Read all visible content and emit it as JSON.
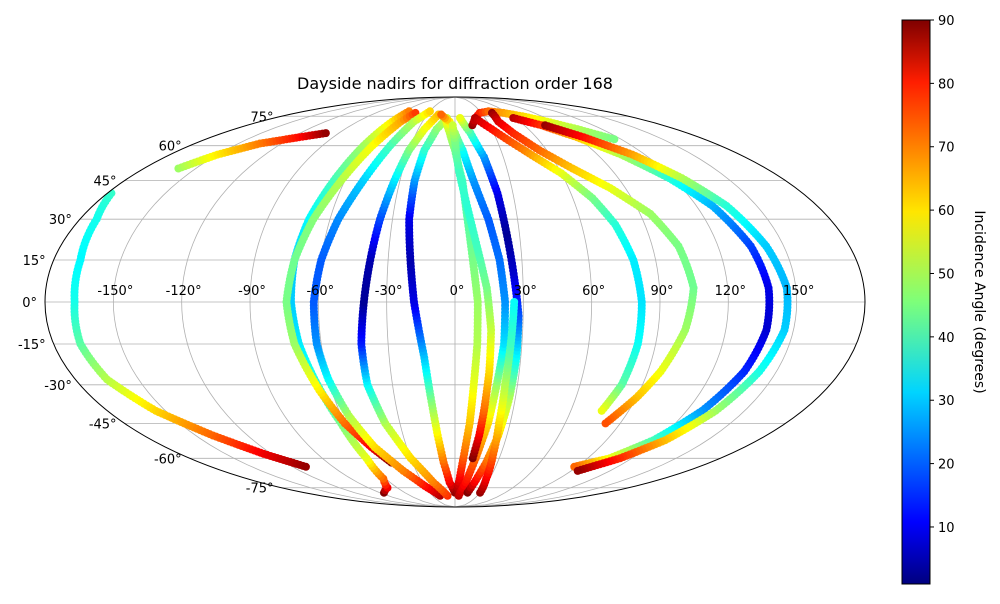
{
  "chart_data": {
    "type": "scatter",
    "projection": "mollweide",
    "title": "Dayside nadirs for diffraction order 168",
    "xlabel": "",
    "ylabel": "",
    "lon_ticks": [
      "-150°",
      "-120°",
      "-90°",
      "-60°",
      "-30°",
      "0°",
      "30°",
      "60°",
      "90°",
      "120°",
      "150°"
    ],
    "lat_ticks": [
      "75°",
      "60°",
      "45°",
      "30°",
      "15°",
      "0°",
      "-15°",
      "-30°",
      "-45°",
      "-60°",
      "-75°"
    ],
    "grid": true,
    "colormap": "jet",
    "colorbar": {
      "label": "Incidence Angle (degrees)",
      "range": [
        1,
        90
      ],
      "ticks": [
        "10",
        "20",
        "30",
        "40",
        "50",
        "60",
        "70",
        "80",
        "90"
      ],
      "placement": "right"
    },
    "series": [
      {
        "points": [
          [
            -178,
            40,
            39
          ],
          [
            -172,
            30,
            36
          ],
          [
            -168,
            15,
            34
          ],
          [
            -167,
            0,
            36
          ],
          [
            -168,
            -15,
            42
          ],
          [
            -165,
            -28,
            50
          ],
          [
            -155,
            -40,
            60
          ],
          [
            -140,
            -50,
            70
          ],
          [
            -125,
            -58,
            80
          ],
          [
            -110,
            -64,
            88
          ]
        ]
      },
      {
        "points": [
          [
            -160,
            50,
            48
          ],
          [
            -150,
            56,
            58
          ],
          [
            -135,
            61,
            68
          ],
          [
            -115,
            64,
            78
          ],
          [
            -100,
            66,
            88
          ]
        ]
      },
      {
        "points": [
          [
            -85,
            -78,
            90
          ],
          [
            -70,
            -75,
            80
          ],
          [
            -62,
            -70,
            70
          ],
          [
            -60,
            -60,
            55
          ],
          [
            -62,
            -45,
            45
          ],
          [
            -66,
            -30,
            38
          ],
          [
            -70,
            -15,
            33
          ],
          [
            -72,
            0,
            30
          ],
          [
            -72,
            15,
            30
          ],
          [
            -70,
            30,
            34
          ],
          [
            -66,
            45,
            40
          ],
          [
            -62,
            60,
            48
          ],
          [
            -58,
            72,
            58
          ],
          [
            -55,
            78,
            68
          ]
        ]
      },
      {
        "points": [
          [
            -45,
            -62,
            90
          ],
          [
            -52,
            -55,
            80
          ],
          [
            -60,
            -45,
            70
          ],
          [
            -66,
            -32,
            58
          ],
          [
            -72,
            -15,
            48
          ],
          [
            -74,
            0,
            45
          ],
          [
            -72,
            15,
            44
          ],
          [
            -68,
            30,
            46
          ],
          [
            -62,
            45,
            50
          ],
          [
            -56,
            60,
            56
          ],
          [
            -50,
            72,
            64
          ],
          [
            -45,
            77,
            74
          ]
        ]
      },
      {
        "points": [
          [
            -20,
            -80,
            86
          ],
          [
            -30,
            -74,
            78
          ],
          [
            -40,
            -66,
            68
          ],
          [
            -50,
            -55,
            60
          ],
          [
            -56,
            -42,
            50
          ],
          [
            -60,
            -28,
            35
          ],
          [
            -62,
            -15,
            25
          ],
          [
            -62,
            0,
            20
          ],
          [
            -60,
            15,
            20
          ],
          [
            -56,
            30,
            24
          ],
          [
            -50,
            45,
            30
          ],
          [
            -44,
            60,
            40
          ],
          [
            -38,
            72,
            50
          ],
          [
            -30,
            78,
            60
          ]
        ]
      },
      {
        "points": [
          [
            -10,
            -80,
            75
          ],
          [
            -20,
            -72,
            68
          ],
          [
            -30,
            -60,
            60
          ],
          [
            -38,
            -45,
            50
          ],
          [
            -42,
            -30,
            35
          ],
          [
            -42,
            -15,
            15
          ],
          [
            -40,
            0,
            3
          ],
          [
            -38,
            15,
            5
          ],
          [
            -36,
            30,
            18
          ],
          [
            -33,
            45,
            32
          ],
          [
            -30,
            58,
            45
          ],
          [
            -25,
            68,
            55
          ],
          [
            -18,
            76,
            62
          ]
        ]
      },
      {
        "points": [
          [
            0,
            -78,
            90
          ],
          [
            -5,
            -72,
            80
          ],
          [
            -8,
            -62,
            70
          ],
          [
            -10,
            -50,
            58
          ],
          [
            -12,
            -35,
            45
          ],
          [
            -14,
            -20,
            30
          ],
          [
            -18,
            0,
            10
          ],
          [
            -20,
            15,
            5
          ],
          [
            -22,
            30,
            10
          ],
          [
            -22,
            45,
            25
          ],
          [
            -20,
            58,
            38
          ],
          [
            -15,
            68,
            46
          ],
          [
            -8,
            74,
            52
          ]
        ]
      },
      {
        "points": [
          [
            2,
            -78,
            88
          ],
          [
            4,
            -70,
            80
          ],
          [
            6,
            -58,
            70
          ],
          [
            8,
            -45,
            62
          ],
          [
            9,
            -30,
            55
          ],
          [
            10,
            -15,
            50
          ],
          [
            10,
            0,
            48
          ],
          [
            8,
            15,
            45
          ],
          [
            6,
            30,
            42
          ],
          [
            4,
            45,
            40
          ],
          [
            0,
            58,
            45
          ],
          [
            -4,
            66,
            50
          ],
          [
            -8,
            72,
            55
          ]
        ]
      },
      {
        "points": [
          [
            5,
            -80,
            85
          ],
          [
            10,
            -72,
            78
          ],
          [
            14,
            -60,
            70
          ],
          [
            18,
            -45,
            60
          ],
          [
            20,
            -30,
            48
          ],
          [
            22,
            -15,
            32
          ],
          [
            22,
            0,
            25
          ],
          [
            20,
            15,
            22
          ],
          [
            16,
            30,
            20
          ],
          [
            10,
            45,
            25
          ],
          [
            5,
            58,
            35
          ],
          [
            0,
            66,
            48
          ],
          [
            -5,
            72,
            58
          ],
          [
            -15,
            76,
            70
          ]
        ]
      },
      {
        "points": [
          [
            12,
            -60,
            90
          ],
          [
            14,
            -50,
            80
          ],
          [
            15,
            -40,
            70
          ],
          [
            16,
            -25,
            60
          ],
          [
            16,
            -10,
            52
          ],
          [
            14,
            5,
            45
          ],
          [
            10,
            20,
            40
          ],
          [
            6,
            35,
            38
          ],
          [
            2,
            50,
            40
          ],
          [
            0,
            62,
            45
          ],
          [
            -2,
            70,
            52
          ]
        ]
      },
      {
        "points": [
          [
            15,
            -78,
            90
          ],
          [
            18,
            -72,
            80
          ],
          [
            22,
            -62,
            70
          ],
          [
            25,
            -50,
            60
          ],
          [
            27,
            -35,
            50
          ],
          [
            28,
            -20,
            35
          ],
          [
            28,
            -5,
            20
          ],
          [
            26,
            10,
            8
          ],
          [
            24,
            25,
            3
          ],
          [
            22,
            40,
            10
          ],
          [
            18,
            55,
            25
          ],
          [
            12,
            66,
            40
          ],
          [
            5,
            74,
            55
          ]
        ]
      },
      {
        "points": [
          [
            30,
            -78,
            88
          ],
          [
            27,
            -70,
            80
          ],
          [
            25,
            -58,
            70
          ],
          [
            24,
            -45,
            60
          ],
          [
            24,
            -30,
            50
          ],
          [
            25,
            -15,
            40
          ],
          [
            26,
            0,
            35
          ]
        ]
      },
      {
        "points": [
          [
            15,
            70,
            88
          ],
          [
            20,
            74,
            82
          ],
          [
            28,
            77,
            76
          ],
          [
            40,
            78,
            70
          ],
          [
            55,
            77,
            65
          ],
          [
            70,
            75,
            60
          ],
          [
            85,
            72,
            55
          ],
          [
            100,
            68,
            50
          ],
          [
            115,
            63,
            45
          ]
        ]
      },
      {
        "points": [
          [
            20,
            74,
            85
          ],
          [
            30,
            68,
            78
          ],
          [
            45,
            58,
            68
          ],
          [
            60,
            48,
            55
          ],
          [
            70,
            38,
            45
          ],
          [
            76,
            28,
            38
          ],
          [
            80,
            15,
            33
          ],
          [
            82,
            0,
            32
          ],
          [
            82,
            -15,
            35
          ],
          [
            80,
            -30,
            42
          ],
          [
            76,
            -40,
            55
          ]
        ]
      },
      {
        "points": [
          [
            42,
            77,
            88
          ],
          [
            40,
            72,
            82
          ],
          [
            45,
            66,
            76
          ],
          [
            55,
            58,
            70
          ],
          [
            68,
            50,
            62
          ],
          [
            82,
            42,
            55
          ],
          [
            95,
            32,
            48
          ],
          [
            102,
            20,
            45
          ],
          [
            105,
            5,
            44
          ],
          [
            102,
            -10,
            48
          ],
          [
            96,
            -25,
            55
          ],
          [
            90,
            -35,
            62
          ],
          [
            82,
            -45,
            72
          ]
        ]
      },
      {
        "points": [
          [
            58,
            74,
            85
          ],
          [
            75,
            70,
            75
          ],
          [
            90,
            64,
            62
          ],
          [
            105,
            56,
            50
          ],
          [
            118,
            46,
            38
          ],
          [
            128,
            35,
            28
          ],
          [
            135,
            20,
            18
          ],
          [
            138,
            5,
            10
          ],
          [
            138,
            -10,
            8
          ],
          [
            135,
            -25,
            15
          ],
          [
            128,
            -40,
            25
          ],
          [
            118,
            -52,
            40
          ],
          [
            105,
            -60,
            55
          ],
          [
            88,
            -64,
            70
          ]
        ]
      },
      {
        "points": [
          [
            78,
            70,
            88
          ],
          [
            95,
            64,
            78
          ],
          [
            112,
            56,
            65
          ],
          [
            125,
            46,
            50
          ],
          [
            135,
            35,
            38
          ],
          [
            142,
            20,
            30
          ],
          [
            146,
            5,
            28
          ],
          [
            146,
            -10,
            30
          ],
          [
            142,
            -25,
            36
          ],
          [
            135,
            -40,
            48
          ],
          [
            125,
            -52,
            62
          ],
          [
            112,
            -60,
            75
          ],
          [
            95,
            -66,
            88
          ]
        ]
      }
    ]
  }
}
